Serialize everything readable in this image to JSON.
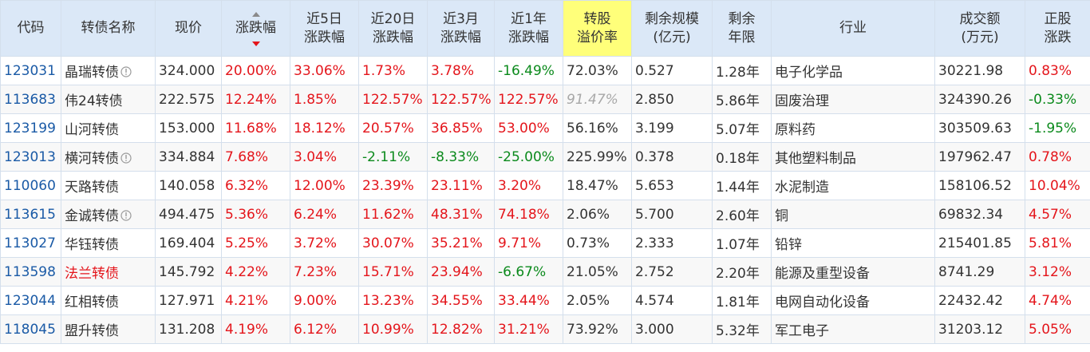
{
  "headers": [
    {
      "key": "code",
      "label": "代码"
    },
    {
      "key": "name",
      "label": "转债名称"
    },
    {
      "key": "price",
      "label": "现价"
    },
    {
      "key": "chg",
      "label": "涨跌幅",
      "sort": "desc"
    },
    {
      "key": "chg5",
      "label": "近5日\n涨跌幅"
    },
    {
      "key": "chg20",
      "label": "近20日\n涨跌幅"
    },
    {
      "key": "chg3m",
      "label": "近3月\n涨跌幅"
    },
    {
      "key": "chg1y",
      "label": "近1年\n涨跌幅"
    },
    {
      "key": "premium",
      "label": "转股\n溢价率",
      "highlight": true
    },
    {
      "key": "scale",
      "label": "剩余规模\n(亿元)"
    },
    {
      "key": "years",
      "label": "剩余\n年限"
    },
    {
      "key": "industry",
      "label": "行业"
    },
    {
      "key": "volume",
      "label": "成交额\n(万元)"
    },
    {
      "key": "stock_chg",
      "label": "正股\n涨跌"
    }
  ],
  "rows": [
    {
      "code": "123031",
      "name": "晶瑞转债",
      "info": true,
      "price": "324.000",
      "chg": "20.00%",
      "chg5": "33.06%",
      "chg20": "1.73%",
      "chg3m": "3.78%",
      "chg1y": "-16.49%",
      "premium": "72.03%",
      "scale": "0.527",
      "years": "1.28年",
      "industry": "电子化学品",
      "volume": "30221.98",
      "stock_chg": "0.83%"
    },
    {
      "code": "113683",
      "name": "伟24转债",
      "price": "222.575",
      "chg": "12.24%",
      "chg5": "1.85%",
      "chg20": "122.57%",
      "chg3m": "122.57%",
      "chg1y": "122.57%",
      "premium": "91.47%",
      "premium_gray": true,
      "scale": "2.850",
      "years": "5.86年",
      "industry": "固废治理",
      "volume": "324390.26",
      "stock_chg": "-0.33%"
    },
    {
      "code": "123199",
      "name": "山河转债",
      "price": "153.000",
      "chg": "11.68%",
      "chg5": "18.12%",
      "chg20": "20.57%",
      "chg3m": "36.85%",
      "chg1y": "53.00%",
      "premium": "56.16%",
      "scale": "3.199",
      "years": "5.07年",
      "industry": "原料药",
      "volume": "303509.63",
      "stock_chg": "-1.95%"
    },
    {
      "code": "123013",
      "name": "横河转债",
      "info": true,
      "price": "334.884",
      "chg": "7.68%",
      "chg5": "3.04%",
      "chg20": "-2.11%",
      "chg3m": "-8.33%",
      "chg1y": "-25.00%",
      "premium": "225.99%",
      "scale": "0.378",
      "years": "0.18年",
      "industry": "其他塑料制品",
      "volume": "197962.47",
      "stock_chg": "0.78%"
    },
    {
      "code": "110060",
      "name": "天路转债",
      "price": "140.058",
      "chg": "6.32%",
      "chg5": "12.00%",
      "chg20": "23.39%",
      "chg3m": "23.11%",
      "chg1y": "3.20%",
      "premium": "18.47%",
      "scale": "5.653",
      "years": "1.44年",
      "industry": "水泥制造",
      "volume": "158106.52",
      "stock_chg": "10.04%"
    },
    {
      "code": "113615",
      "name": "金诚转债",
      "info": true,
      "price": "494.475",
      "chg": "5.36%",
      "chg5": "6.24%",
      "chg20": "11.62%",
      "chg3m": "48.31%",
      "chg1y": "74.18%",
      "premium": "2.06%",
      "scale": "5.700",
      "years": "2.60年",
      "industry": "铜",
      "volume": "69832.34",
      "stock_chg": "4.57%"
    },
    {
      "code": "113027",
      "name": "华钰转债",
      "price": "169.404",
      "chg": "5.25%",
      "chg5": "3.72%",
      "chg20": "30.07%",
      "chg3m": "35.21%",
      "chg1y": "9.71%",
      "premium": "0.73%",
      "scale": "2.333",
      "years": "1.07年",
      "industry": "铅锌",
      "volume": "215401.85",
      "stock_chg": "5.81%"
    },
    {
      "code": "113598",
      "name": "法兰转债",
      "name_red": true,
      "price": "145.792",
      "chg": "4.22%",
      "chg5": "7.23%",
      "chg20": "15.71%",
      "chg3m": "23.94%",
      "chg1y": "-6.67%",
      "premium": "21.05%",
      "scale": "2.752",
      "years": "2.20年",
      "industry": "能源及重型设备",
      "volume": "8741.29",
      "stock_chg": "3.12%"
    },
    {
      "code": "123044",
      "name": "红相转债",
      "price": "127.971",
      "chg": "4.21%",
      "chg5": "9.00%",
      "chg20": "13.23%",
      "chg3m": "34.55%",
      "chg1y": "33.44%",
      "premium": "2.05%",
      "scale": "4.574",
      "years": "1.81年",
      "industry": "电网自动化设备",
      "volume": "22432.42",
      "stock_chg": "4.74%"
    },
    {
      "code": "118045",
      "name": "盟升转债",
      "price": "131.208",
      "chg": "4.19%",
      "chg5": "6.12%",
      "chg20": "10.99%",
      "chg3m": "12.82%",
      "chg1y": "31.21%",
      "premium": "73.92%",
      "scale": "3.000",
      "years": "5.32年",
      "industry": "军工电子",
      "volume": "31203.12",
      "stock_chg": "5.05%"
    }
  ],
  "colors": {
    "up": "#e4151b",
    "down": "#0b8a1c",
    "code": "#1a5aa6",
    "header_bg": "#dbe8f7",
    "highlight": "#ffff7a"
  },
  "icons": {
    "info": "info-circle-icon",
    "sort": "sort-desc-icon"
  }
}
